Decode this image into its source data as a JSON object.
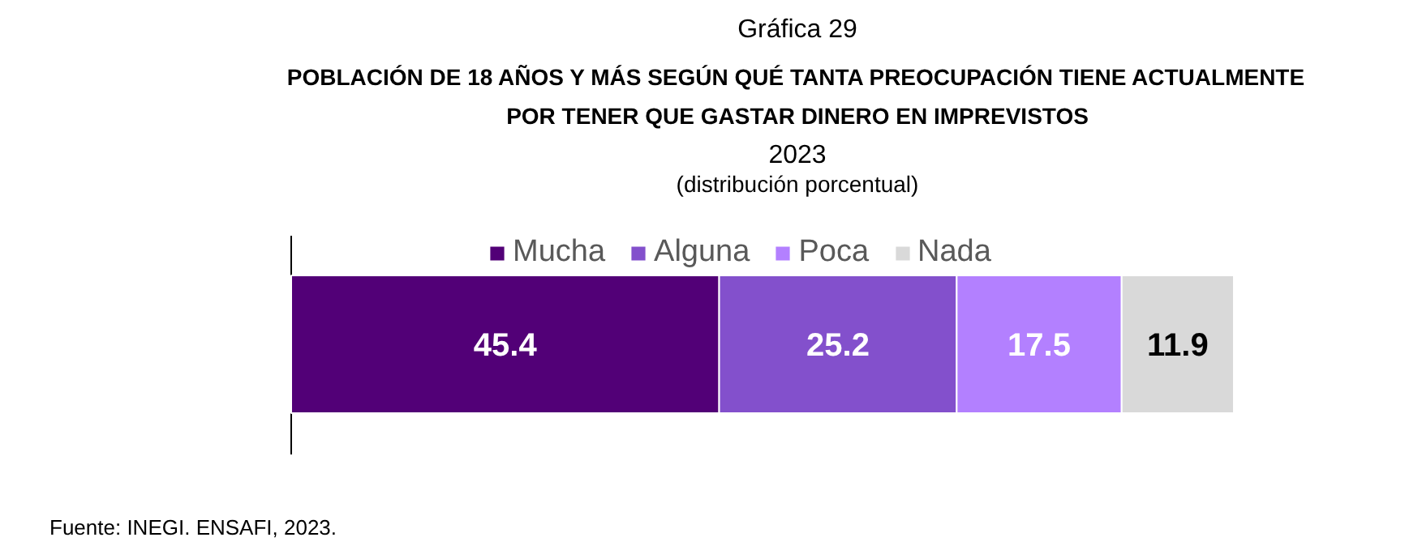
{
  "chart_data": {
    "type": "bar",
    "orientation": "horizontal",
    "stacked": true,
    "title": "Gráfica 29",
    "subtitle": "POBLACIÓN DE 18 AÑOS Y MÁS SEGÚN QUÉ TANTA PREOCUPACIÓN TIENE ACTUALMENTE\nPOR TENER QUE GASTAR DINERO EN IMPREVISTOS",
    "annotations": [
      "2023",
      "(distribución porcentual)",
      "Fuente: INEGI. ENSAFI, 2023."
    ],
    "categories": [
      null
    ],
    "xlim": [
      0,
      100
    ],
    "tick_labels": false,
    "data_labels": true,
    "legend": "top",
    "series": [
      {
        "name": "Mucha",
        "color": "#520077",
        "values": [
          45.4
        ]
      },
      {
        "name": "Alguna",
        "color": "#8350cc",
        "values": [
          25.2
        ]
      },
      {
        "name": "Poca",
        "color": "#b380ff",
        "values": [
          17.5
        ]
      },
      {
        "name": "Nada",
        "color": "#d9d9d9",
        "values": [
          11.9
        ]
      }
    ]
  }
}
